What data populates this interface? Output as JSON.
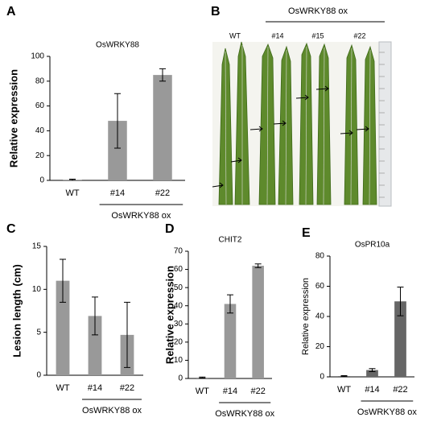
{
  "chart_data": [
    {
      "type": "bar",
      "label": "A",
      "title": "OsWRKY88",
      "ylabel": "Relative expression",
      "categories": [
        "WT",
        "#14",
        "#22"
      ],
      "values": [
        0.5,
        48,
        85
      ],
      "errors": [
        0.5,
        22,
        5
      ],
      "group": "OsWRKY88 ox",
      "color": "#999999",
      "ylim": [
        0,
        100
      ],
      "yticks": [
        0,
        20,
        40,
        60,
        80,
        100
      ]
    },
    {
      "type": "bar",
      "label": "C",
      "ylabel": "Lesion length (cm)",
      "categories": [
        "WT",
        "#14",
        "#22"
      ],
      "values": [
        11,
        6.9,
        4.7
      ],
      "errors": [
        2.5,
        2.2,
        3.8
      ],
      "group": "OsWRKY88 ox",
      "color": "#999999",
      "ylim": [
        0,
        15
      ],
      "yticks": [
        0,
        5,
        10,
        15
      ]
    },
    {
      "type": "bar",
      "label": "D",
      "title": "CHIT2",
      "ylabel": "Relative expression",
      "categories": [
        "WT",
        "#14",
        "#22"
      ],
      "values": [
        0.5,
        41,
        62
      ],
      "errors": [
        0.3,
        5,
        1
      ],
      "group": "OsWRKY88 ox",
      "color": "#999999",
      "ylim": [
        0,
        70
      ],
      "yticks": [
        0,
        10,
        20,
        30,
        40,
        50,
        60,
        70
      ]
    },
    {
      "type": "bar",
      "label": "E",
      "title": "OsPR10a",
      "ylabel": "Relative expression",
      "categories": [
        "WT",
        "#14",
        "#22"
      ],
      "values": [
        0.5,
        4.5,
        50
      ],
      "errors": [
        0.3,
        1,
        9.5
      ],
      "group": "OsWRKY88 ox",
      "color": "#666666",
      "ylim": [
        0,
        80
      ],
      "yticks": [
        0,
        20,
        40,
        60,
        80
      ]
    }
  ],
  "photo": {
    "label": "B",
    "group": "OsWRKY88 ox",
    "lanes": [
      "WT",
      "#14",
      "#15",
      "#22"
    ]
  }
}
